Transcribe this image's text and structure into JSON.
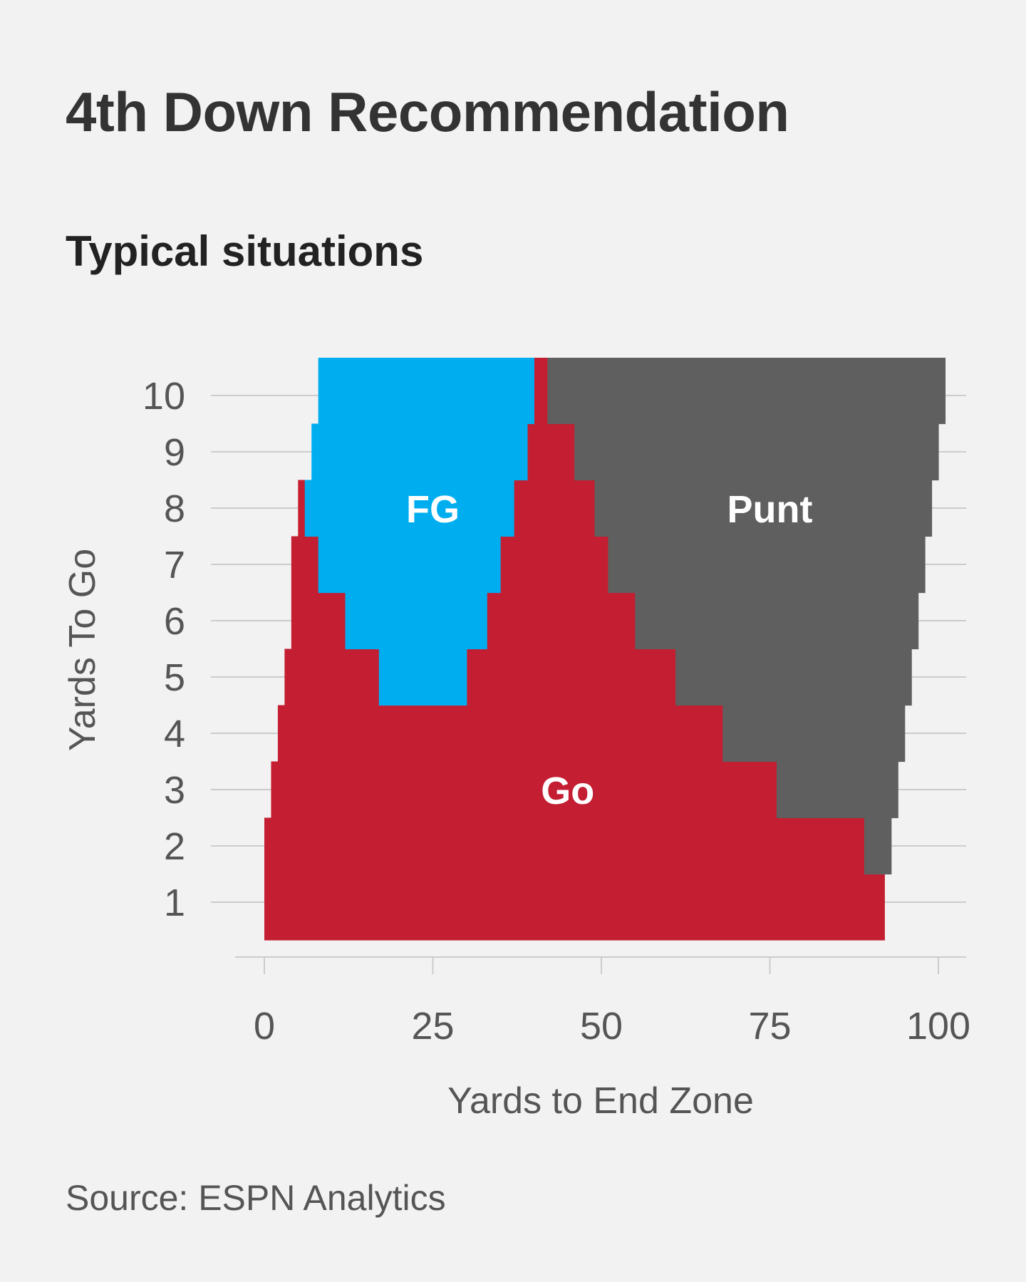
{
  "header": {
    "title": "4th Down Recommendation",
    "subtitle": "Typical situations"
  },
  "footer": {
    "source": "Source: ESPN Analytics"
  },
  "colors": {
    "background": "#f2f2f2",
    "go": "#c41e32",
    "fg": "#00aeef",
    "punt": "#5f5f5f",
    "grid": "#cccccc",
    "text": "#555555"
  },
  "chart_data": {
    "type": "area",
    "xlabel": "Yards to End Zone",
    "ylabel": "Yards To Go",
    "xlim": [
      0,
      100
    ],
    "ylim": [
      0,
      10
    ],
    "x_ticks": [
      "0",
      "25",
      "50",
      "75",
      "100"
    ],
    "y_ticks": [
      "1",
      "2",
      "3",
      "4",
      "5",
      "6",
      "7",
      "8",
      "9",
      "10"
    ],
    "grid": true,
    "series": [
      {
        "name": "Go",
        "color": "#c41e32",
        "rows": [
          {
            "yards_to_go": 1,
            "ranges": [
              [
                0,
                92
              ]
            ]
          },
          {
            "yards_to_go": 2,
            "ranges": [
              [
                0,
                89
              ]
            ]
          },
          {
            "yards_to_go": 3,
            "ranges": [
              [
                1,
                76
              ]
            ]
          },
          {
            "yards_to_go": 4,
            "ranges": [
              [
                2,
                68
              ]
            ]
          },
          {
            "yards_to_go": 5,
            "ranges": [
              [
                3,
                61
              ]
            ]
          },
          {
            "yards_to_go": 6,
            "ranges": [
              [
                4,
                12
              ],
              [
                30,
                55
              ]
            ]
          },
          {
            "yards_to_go": 7,
            "ranges": [
              [
                4,
                8
              ],
              [
                33,
                51
              ]
            ]
          },
          {
            "yards_to_go": 8,
            "ranges": [
              [
                5,
                8
              ],
              [
                35,
                49
              ]
            ]
          },
          {
            "yards_to_go": 9,
            "ranges": [
              [
                37,
                46
              ]
            ]
          },
          {
            "yards_to_go": 10,
            "ranges": [
              [
                40,
                42
              ]
            ]
          }
        ]
      },
      {
        "name": "FG",
        "color": "#00aeef",
        "rows": [
          {
            "yards_to_go": 5,
            "ranges": [
              [
                17,
                30
              ]
            ]
          },
          {
            "yards_to_go": 6,
            "ranges": [
              [
                12,
                33
              ]
            ]
          },
          {
            "yards_to_go": 7,
            "ranges": [
              [
                8,
                35
              ]
            ]
          },
          {
            "yards_to_go": 8,
            "ranges": [
              [
                6,
                37
              ]
            ]
          },
          {
            "yards_to_go": 9,
            "ranges": [
              [
                7,
                39
              ]
            ]
          },
          {
            "yards_to_go": 10,
            "ranges": [
              [
                8,
                40
              ]
            ]
          }
        ]
      },
      {
        "name": "Punt",
        "color": "#5f5f5f",
        "rows": [
          {
            "yards_to_go": 2,
            "ranges": [
              [
                89,
                93
              ]
            ]
          },
          {
            "yards_to_go": 3,
            "ranges": [
              [
                76,
                94
              ]
            ]
          },
          {
            "yards_to_go": 4,
            "ranges": [
              [
                68,
                95
              ]
            ]
          },
          {
            "yards_to_go": 5,
            "ranges": [
              [
                61,
                96
              ]
            ]
          },
          {
            "yards_to_go": 6,
            "ranges": [
              [
                55,
                97
              ]
            ]
          },
          {
            "yards_to_go": 7,
            "ranges": [
              [
                51,
                98
              ]
            ]
          },
          {
            "yards_to_go": 8,
            "ranges": [
              [
                49,
                99
              ]
            ]
          },
          {
            "yards_to_go": 9,
            "ranges": [
              [
                46,
                100
              ]
            ]
          },
          {
            "yards_to_go": 10,
            "ranges": [
              [
                42,
                101
              ]
            ]
          }
        ]
      }
    ],
    "region_labels": [
      {
        "text": "FG",
        "x": 25,
        "y": 8
      },
      {
        "text": "Punt",
        "x": 75,
        "y": 8
      },
      {
        "text": "Go",
        "x": 45,
        "y": 3
      }
    ]
  }
}
